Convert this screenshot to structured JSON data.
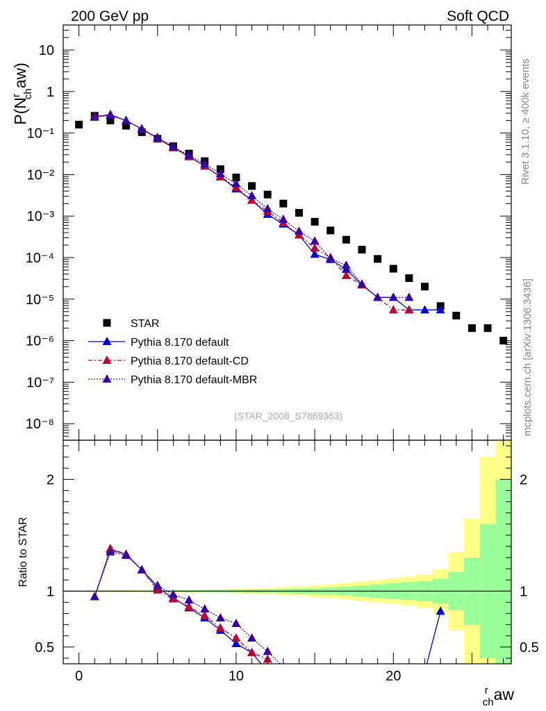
{
  "header": {
    "left_label": "200 GeV pp",
    "right_label": "Soft QCD",
    "side_label_top": "Rivet 3.1.10, ≥ 400k events",
    "side_label_bottom": "mcplots.cern.ch [arXiv:1306.3436]",
    "analysis_id": "(STAR_2008_S7869363)"
  },
  "chart_data": [
    {
      "type": "scatter",
      "ylabel": "P(N^r_ch aw)",
      "xlabel": "N^r_ch aw",
      "ylabel_parts": {
        "main": "P(N",
        "sup": "r",
        "sub": "ch",
        "rest": "aw)"
      },
      "xlabel_parts": {
        "main": "N",
        "sup": "r",
        "sub": "ch",
        "rest": "aw"
      },
      "yscale": "log",
      "ylim": [
        4e-09,
        40
      ],
      "xlim": [
        -1,
        27.5
      ],
      "y_tick_labels": [
        "10⁻⁸",
        "10⁻⁷",
        "10⁻⁶",
        "10⁻⁵",
        "10⁻⁴",
        "10⁻³",
        "10⁻²",
        "10⁻¹",
        "1",
        "10"
      ],
      "x_tick_labels": [
        "0",
        "10",
        "20"
      ],
      "legend_placement": "bottom-left",
      "series": [
        {
          "name": "STAR",
          "color": "#000000",
          "marker": "square",
          "x": [
            0,
            1,
            2,
            3,
            4,
            5,
            6,
            7,
            8,
            9,
            10,
            11,
            12,
            13,
            14,
            15,
            16,
            17,
            18,
            19,
            20,
            21,
            22,
            23,
            24,
            25,
            26,
            27
          ],
          "y": [
            0.16,
            0.26,
            0.2,
            0.15,
            0.105,
            0.073,
            0.048,
            0.032,
            0.021,
            0.0135,
            0.0085,
            0.0053,
            0.0033,
            0.002,
            0.0012,
            0.00073,
            0.00045,
            0.00027,
            0.000155,
            9.3e-05,
            5.4e-05,
            3.2e-05,
            2e-05,
            6.8e-06,
            4e-06,
            2e-06,
            2e-06,
            1e-06
          ]
        },
        {
          "name": "Pythia 8.170 default",
          "color": "#0000dd",
          "marker": "triangle",
          "line": "solid",
          "x": [
            1,
            2,
            3,
            4,
            5,
            6,
            7,
            8,
            9,
            10,
            11,
            12,
            13,
            14,
            15,
            16,
            17,
            18,
            19,
            20,
            21,
            22,
            23
          ],
          "y": [
            0.25,
            0.27,
            0.2,
            0.125,
            0.075,
            0.045,
            0.027,
            0.016,
            0.0088,
            0.0045,
            0.0024,
            0.0011,
            0.00064,
            0.00035,
            0.00012,
            9e-05,
            5.2e-05,
            2.2e-05,
            1.1e-05,
            1.1e-05,
            5.5e-06,
            5.5e-06,
            5.5e-06
          ]
        },
        {
          "name": "Pythia 8.170 default-CD",
          "color": "#bb0033",
          "marker": "triangle",
          "line": "dashed",
          "x": [
            1,
            2,
            3,
            4,
            5,
            6,
            7,
            8,
            9,
            10,
            11,
            12,
            13,
            14,
            15,
            16,
            17,
            18,
            19,
            20,
            21
          ],
          "y": [
            0.25,
            0.28,
            0.2,
            0.125,
            0.074,
            0.044,
            0.027,
            0.016,
            0.009,
            0.0049,
            0.0024,
            0.0013,
            0.00069,
            0.00035,
            0.00017,
            0.0001,
            3.7e-05,
            2.2e-05,
            1.1e-05,
            5.5e-06,
            5.5e-06
          ]
        },
        {
          "name": "Pythia 8.170 default-MBR",
          "color": "#3300aa",
          "marker": "triangle",
          "line": "dotted",
          "x": [
            1,
            2,
            3,
            4,
            5,
            6,
            7,
            8,
            9,
            10,
            11,
            12,
            13,
            14,
            15,
            16,
            17,
            18,
            19,
            20,
            21
          ],
          "y": [
            0.24,
            0.27,
            0.2,
            0.125,
            0.078,
            0.047,
            0.029,
            0.018,
            0.0105,
            0.006,
            0.0031,
            0.0015,
            0.00083,
            0.00043,
            0.00025,
            9.5e-05,
            6.5e-05,
            2.3e-05,
            1.1e-05,
            1.1e-05,
            1.1e-05
          ]
        }
      ]
    },
    {
      "type": "line",
      "ylabel": "Ratio to STAR",
      "xlabel": "N^r_ch aw",
      "ylim": [
        0.35,
        2.35
      ],
      "xlim": [
        -1,
        27.5
      ],
      "y_tick_labels": [
        "0.5",
        "1",
        "2"
      ],
      "x_tick_labels": [
        "0",
        "10",
        "20"
      ],
      "reference_line": 1,
      "uncertainty_bands": {
        "x_edges": [
          0.5,
          1.5,
          2.5,
          3.5,
          4.5,
          5.5,
          6.5,
          7.5,
          8.5,
          9.5,
          10.5,
          11.5,
          12.5,
          13.5,
          14.5,
          15.5,
          16.5,
          17.5,
          18.5,
          19.5,
          20.5,
          21.5,
          22.5,
          23.5,
          24.5,
          25.5,
          26.5,
          27.5
        ],
        "inner_half_width": [
          0.005,
          0.005,
          0.005,
          0.005,
          0.006,
          0.006,
          0.007,
          0.008,
          0.01,
          0.012,
          0.014,
          0.016,
          0.019,
          0.022,
          0.026,
          0.032,
          0.04,
          0.05,
          0.06,
          0.07,
          0.08,
          0.09,
          0.11,
          0.17,
          0.3,
          0.6,
          1.0
        ],
        "outer_half_width": [
          0.008,
          0.008,
          0.008,
          0.009,
          0.01,
          0.011,
          0.012,
          0.014,
          0.017,
          0.02,
          0.024,
          0.029,
          0.035,
          0.042,
          0.05,
          0.06,
          0.072,
          0.086,
          0.1,
          0.115,
          0.13,
          0.15,
          0.2,
          0.35,
          0.65,
          1.2,
          1.5
        ],
        "inner_color": "#99ff99",
        "outer_color": "#ffff88"
      },
      "series": [
        {
          "name": "Pythia 8.170 default",
          "color": "#0000dd",
          "line": "solid",
          "x": [
            1,
            2,
            3,
            4,
            5,
            6,
            7,
            8,
            9,
            10,
            11,
            12,
            22,
            23
          ],
          "y": [
            0.95,
            1.37,
            1.33,
            1.19,
            1.03,
            0.94,
            0.85,
            0.76,
            0.65,
            0.53,
            0.45,
            0.28,
            0.28,
            0.82
          ]
        },
        {
          "name": "Pythia 8.170 default-CD",
          "color": "#bb0033",
          "line": "dashed",
          "x": [
            1,
            2,
            3,
            4,
            5,
            6,
            7,
            8,
            9,
            10,
            11,
            12
          ],
          "y": [
            0.95,
            1.38,
            1.33,
            1.19,
            1.01,
            0.93,
            0.86,
            0.78,
            0.67,
            0.58,
            0.45,
            0.39
          ]
        },
        {
          "name": "Pythia 8.170 default-MBR",
          "color": "#3300aa",
          "line": "dotted",
          "x": [
            1,
            2,
            3,
            4,
            5,
            6,
            7,
            8,
            9,
            10,
            11,
            12,
            13
          ],
          "y": [
            0.95,
            1.35,
            1.32,
            1.19,
            1.05,
            0.97,
            0.92,
            0.84,
            0.76,
            0.71,
            0.58,
            0.46,
            0.32
          ]
        }
      ]
    }
  ]
}
